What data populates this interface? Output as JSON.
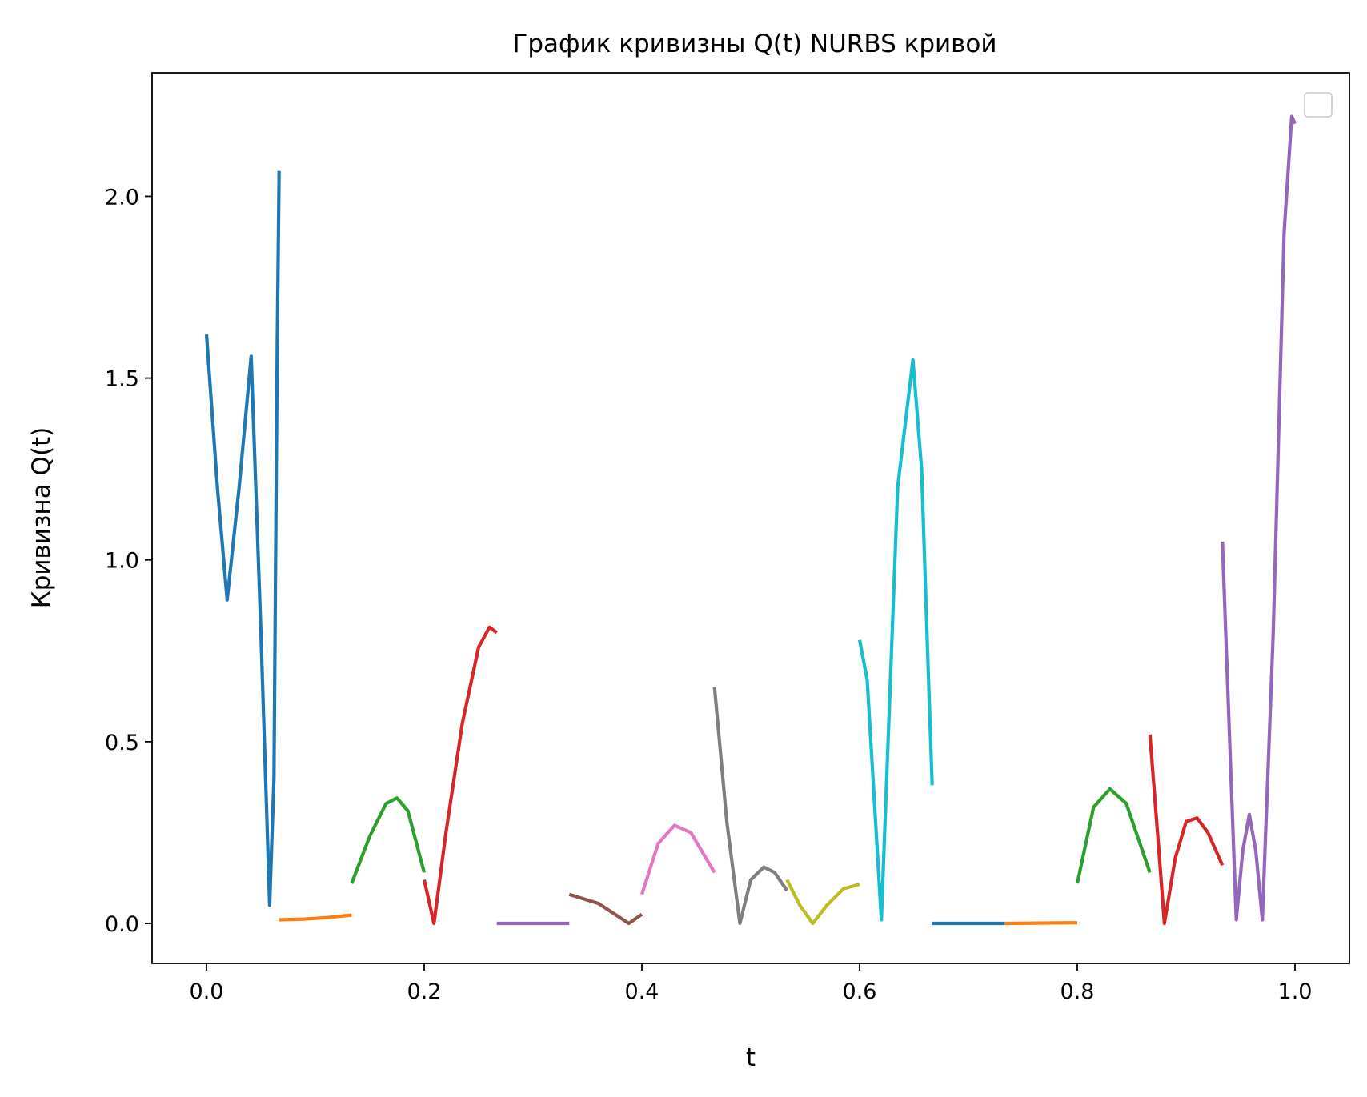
{
  "chart_data": {
    "type": "line",
    "title": "График кривизны Q(t) NURBS кривой",
    "xlabel": "t",
    "ylabel": "Кривизна Q(t)",
    "xlim": [
      -0.05,
      1.05
    ],
    "ylim": [
      -0.11,
      2.34
    ],
    "xticks": [
      0.0,
      0.2,
      0.4,
      0.6,
      0.8,
      1.0
    ],
    "xtick_labels": [
      "0.0",
      "0.2",
      "0.4",
      "0.6",
      "0.8",
      "1.0"
    ],
    "yticks": [
      0.0,
      0.5,
      1.0,
      1.5,
      2.0
    ],
    "ytick_labels": [
      "0.0",
      "0.5",
      "1.0",
      "1.5",
      "2.0"
    ],
    "grid": false,
    "legend": "top-right",
    "series": [
      {
        "color": "#1f77b4",
        "x": [
          0.0,
          0.01,
          0.019,
          0.03,
          0.041,
          0.05,
          0.058,
          0.062,
          0.065,
          0.0667
        ],
        "y": [
          1.62,
          1.2,
          0.89,
          1.2,
          1.56,
          0.8,
          0.05,
          0.4,
          1.6,
          2.07
        ]
      },
      {
        "color": "#ff7f0e",
        "x": [
          0.0667,
          0.09,
          0.11,
          0.1333
        ],
        "y": [
          0.01,
          0.012,
          0.016,
          0.023
        ]
      },
      {
        "color": "#2ca02c",
        "x": [
          0.1333,
          0.15,
          0.165,
          0.175,
          0.185,
          0.2
        ],
        "y": [
          0.11,
          0.24,
          0.33,
          0.345,
          0.31,
          0.14
        ]
      },
      {
        "color": "#d62728",
        "x": [
          0.2,
          0.209,
          0.22,
          0.235,
          0.25,
          0.26,
          0.2667
        ],
        "y": [
          0.12,
          0.0,
          0.25,
          0.55,
          0.76,
          0.815,
          0.8
        ]
      },
      {
        "color": "#9467bd",
        "x": [
          0.2667,
          0.3333
        ],
        "y": [
          0.0,
          0.0
        ]
      },
      {
        "color": "#8c564b",
        "x": [
          0.3333,
          0.36,
          0.388,
          0.4
        ],
        "y": [
          0.08,
          0.055,
          0.0,
          0.025
        ]
      },
      {
        "color": "#e377c2",
        "x": [
          0.4,
          0.415,
          0.43,
          0.445,
          0.4667
        ],
        "y": [
          0.08,
          0.22,
          0.27,
          0.25,
          0.14
        ]
      },
      {
        "color": "#7f7f7f",
        "x": [
          0.4667,
          0.478,
          0.49,
          0.5,
          0.512,
          0.522,
          0.5333
        ],
        "y": [
          0.65,
          0.28,
          0.0,
          0.12,
          0.155,
          0.14,
          0.09
        ]
      },
      {
        "color": "#bcbd22",
        "x": [
          0.5333,
          0.545,
          0.557,
          0.57,
          0.585,
          0.6
        ],
        "y": [
          0.12,
          0.05,
          0.0,
          0.05,
          0.095,
          0.108
        ]
      },
      {
        "color": "#17becf",
        "x": [
          0.6,
          0.607,
          0.62,
          0.635,
          0.649,
          0.657,
          0.663,
          0.6667
        ],
        "y": [
          0.78,
          0.67,
          0.01,
          1.2,
          1.55,
          1.25,
          0.7,
          0.38
        ]
      },
      {
        "color": "#1f77b4",
        "x": [
          0.6667,
          0.7333
        ],
        "y": [
          0.0,
          0.0
        ]
      },
      {
        "color": "#ff7f0e",
        "x": [
          0.7333,
          0.8
        ],
        "y": [
          0.0,
          0.002
        ]
      },
      {
        "color": "#2ca02c",
        "x": [
          0.8,
          0.815,
          0.83,
          0.845,
          0.8667
        ],
        "y": [
          0.11,
          0.32,
          0.37,
          0.33,
          0.14
        ]
      },
      {
        "color": "#d62728",
        "x": [
          0.8667,
          0.875,
          0.88,
          0.89,
          0.9,
          0.91,
          0.92,
          0.9333
        ],
        "y": [
          0.52,
          0.2,
          0.0,
          0.18,
          0.28,
          0.29,
          0.25,
          0.16
        ]
      },
      {
        "color": "#9467bd",
        "x": [
          0.9333,
          0.94,
          0.946,
          0.952,
          0.958,
          0.964,
          0.97,
          0.98,
          0.99,
          0.997,
          1.0
        ],
        "y": [
          1.05,
          0.5,
          0.01,
          0.2,
          0.3,
          0.2,
          0.01,
          0.8,
          1.9,
          2.22,
          2.2
        ]
      }
    ]
  }
}
